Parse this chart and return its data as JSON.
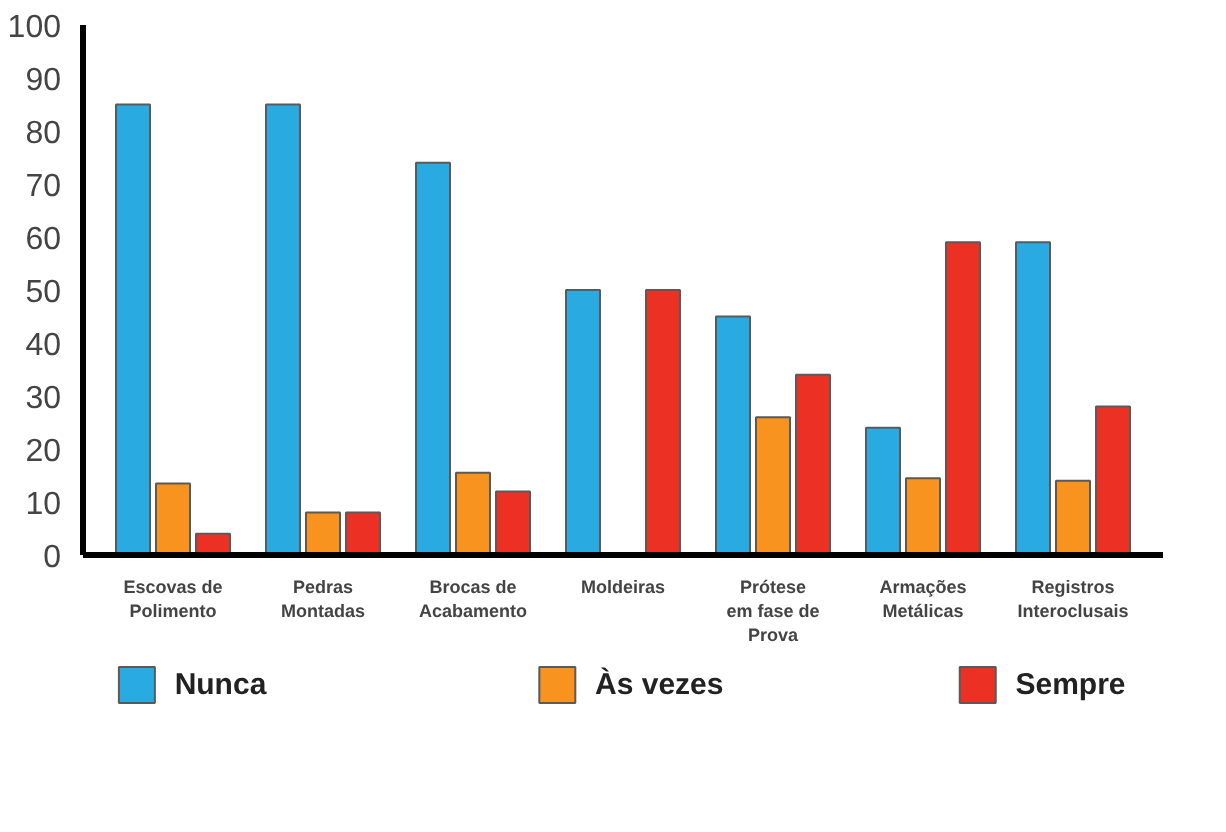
{
  "chart_data": {
    "type": "bar",
    "categories": [
      "Escovas de\nPolimento",
      "Pedras\nMontadas",
      "Brocas de\nAcabamento",
      "Moldeiras",
      "Prótese\nem fase de\nProva",
      "Armações\nMetálicas",
      "Registros\nInteroclusais"
    ],
    "series": [
      {
        "name": "Nunca",
        "color": "#29abe2",
        "values": [
          85,
          85,
          74,
          50,
          45,
          24,
          59
        ]
      },
      {
        "name": "Às vezes",
        "color": "#f7931e",
        "values": [
          13.5,
          8,
          15.5,
          null,
          26,
          14.5,
          14
        ]
      },
      {
        "name": "Sempre",
        "color": "#ed3024",
        "values": [
          4,
          8,
          12,
          50,
          34,
          59,
          28
        ]
      }
    ],
    "ylim": [
      0,
      100
    ],
    "yticks": [
      0,
      10,
      20,
      30,
      40,
      50,
      60,
      70,
      80,
      90,
      100
    ],
    "grid": false,
    "legend": "bottom"
  }
}
